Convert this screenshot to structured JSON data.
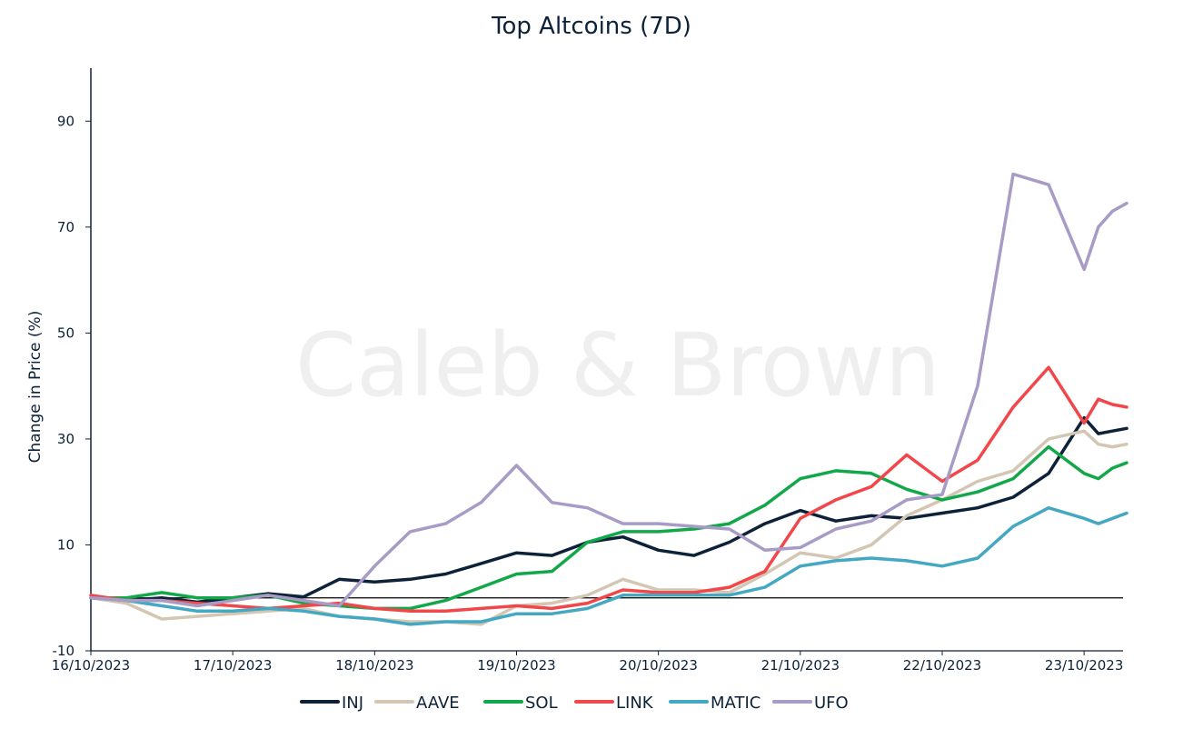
{
  "chart_data": {
    "type": "line",
    "title": "Top Altcoins (7D)",
    "xlabel": "",
    "ylabel": "Change in Price (%)",
    "watermark": "Caleb & Brown",
    "ylim": [
      -10,
      100
    ],
    "yticks": [
      -10,
      10,
      30,
      50,
      70,
      90
    ],
    "xlim": [
      0,
      7.3
    ],
    "x_ticks": [
      0,
      1,
      2,
      3,
      4,
      5,
      6,
      7
    ],
    "x_tick_labels": [
      "16/10/2023",
      "17/10/2023",
      "18/10/2023",
      "19/10/2023",
      "20/10/2023",
      "21/10/2023",
      "22/10/2023",
      "23/10/2023"
    ],
    "zero_line": 0,
    "legend_position": "bottom-center",
    "x": [
      0,
      0.25,
      0.5,
      0.75,
      1,
      1.25,
      1.5,
      1.75,
      2,
      2.25,
      2.5,
      2.75,
      3,
      3.25,
      3.5,
      3.75,
      4,
      4.25,
      4.5,
      4.75,
      5,
      5.25,
      5.5,
      5.75,
      6,
      6.25,
      6.5,
      6.75,
      7,
      7.1,
      7.2,
      7.3
    ],
    "series": [
      {
        "name": "INJ",
        "color": "#0d2238",
        "values": [
          0,
          -0.5,
          0,
          -0.8,
          0,
          0.8,
          0.2,
          3.5,
          3.0,
          3.5,
          4.5,
          6.5,
          8.5,
          8.0,
          10.5,
          11.5,
          9.0,
          8.0,
          10.5,
          14.0,
          16.5,
          14.5,
          15.5,
          15.0,
          16.0,
          17.0,
          19.0,
          23.5,
          34.0,
          31.0,
          31.5,
          32.0
        ]
      },
      {
        "name": "AAVE",
        "color": "#d3c6b3",
        "values": [
          0,
          -1.0,
          -4.0,
          -3.5,
          -3.0,
          -2.5,
          -2.0,
          -3.5,
          -4.0,
          -4.5,
          -4.5,
          -5.0,
          -1.5,
          -1.0,
          0.5,
          3.5,
          1.5,
          1.5,
          1.0,
          4.5,
          8.5,
          7.5,
          10.0,
          15.5,
          18.5,
          22.0,
          24.0,
          30.0,
          31.5,
          29.0,
          28.5,
          29.0
        ]
      },
      {
        "name": "SOL",
        "color": "#12a84a",
        "values": [
          0,
          0,
          1.0,
          0,
          0,
          0.5,
          -1.0,
          -1.5,
          -2.0,
          -2.0,
          -0.5,
          2.0,
          4.5,
          5.0,
          10.5,
          12.5,
          12.5,
          13.0,
          14.0,
          17.5,
          22.5,
          24.0,
          23.5,
          20.5,
          18.5,
          20.0,
          22.5,
          28.5,
          23.5,
          22.5,
          24.5,
          25.5
        ]
      },
      {
        "name": "LINK",
        "color": "#f2474a",
        "values": [
          0.5,
          -0.5,
          -0.5,
          -1.0,
          -1.5,
          -2.0,
          -1.5,
          -1.0,
          -2.0,
          -2.5,
          -2.5,
          -2.0,
          -1.5,
          -2.0,
          -1.0,
          1.5,
          1.0,
          1.0,
          2.0,
          5.0,
          15.0,
          18.5,
          21.0,
          27.0,
          22.0,
          26.0,
          36.0,
          43.5,
          33.0,
          37.5,
          36.5,
          36.0
        ]
      },
      {
        "name": "MATIC",
        "color": "#44a8c3",
        "values": [
          0,
          -0.5,
          -1.5,
          -2.5,
          -2.5,
          -2.0,
          -2.5,
          -3.5,
          -4.0,
          -5.0,
          -4.5,
          -4.5,
          -3.0,
          -3.0,
          -2.0,
          0.5,
          0.5,
          0.5,
          0.5,
          2.0,
          6.0,
          7.0,
          7.5,
          7.0,
          6.0,
          7.5,
          13.5,
          17.0,
          15.0,
          14.0,
          15.0,
          16.0
        ]
      },
      {
        "name": "UFO",
        "color": "#a89bc6",
        "values": [
          0,
          -0.5,
          -0.5,
          -1.5,
          -0.5,
          0.5,
          -0.5,
          -1.5,
          6.0,
          12.5,
          14.0,
          18.0,
          25.0,
          18.0,
          17.0,
          14.0,
          14.0,
          13.5,
          13.0,
          9.0,
          9.5,
          13.0,
          14.5,
          18.5,
          19.5,
          40.0,
          80.0,
          78.0,
          62.0,
          70.0,
          73.0,
          74.5
        ]
      }
    ]
  }
}
